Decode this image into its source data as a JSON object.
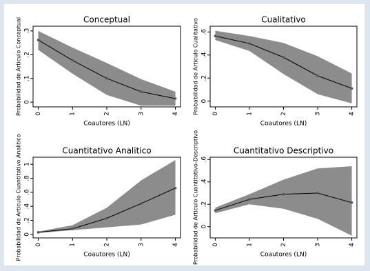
{
  "chart_data": [
    {
      "type": "line",
      "title": "Conceptual",
      "xlabel": "Coautores (LN)",
      "ylabel": "Probabilidad de Articulo Conceptual",
      "x": [
        0,
        1,
        2,
        3,
        4
      ],
      "xlim": [
        -0.15,
        4.15
      ],
      "xticks": [
        0,
        1,
        2,
        3,
        4
      ],
      "ylim": [
        -0.02,
        0.32
      ],
      "yticks": [
        0,
        {
          "value": 0.1,
          "label": ".1"
        },
        {
          "value": 0.2,
          "label": ".2"
        },
        {
          "value": 0.3,
          "label": ".3"
        }
      ],
      "color": "#000000",
      "band_color": "#8c8c8c",
      "values": [
        0.262,
        0.176,
        0.1,
        0.044,
        0.015
      ],
      "ci_upper": [
        0.3,
        0.23,
        0.165,
        0.097,
        0.044
      ],
      "ci_lower": [
        0.22,
        0.12,
        0.03,
        -0.015,
        -0.015
      ]
    },
    {
      "type": "line",
      "title": "Cualitativo",
      "xlabel": "Coautores (LN)",
      "ylabel": "Probabilidad de Articulo Cualitativo",
      "x": [
        0,
        1,
        2,
        3,
        4
      ],
      "xlim": [
        -0.15,
        4.15
      ],
      "xticks": [
        0,
        1,
        2,
        3,
        4
      ],
      "ylim": [
        -0.05,
        0.65
      ],
      "yticks": [
        0,
        {
          "value": 0.2,
          "label": ".2"
        },
        {
          "value": 0.4,
          "label": ".4"
        },
        {
          "value": 0.6,
          "label": ".6"
        }
      ],
      "color": "#000000",
      "band_color": "#8c8c8c",
      "values": [
        0.565,
        0.5,
        0.38,
        0.22,
        0.11
      ],
      "ci_upper": [
        0.61,
        0.565,
        0.505,
        0.39,
        0.24
      ],
      "ci_lower": [
        0.53,
        0.435,
        0.235,
        0.06,
        -0.02
      ]
    },
    {
      "type": "line",
      "title": "Cuantitativo Analitico",
      "xlabel": "Coautores (LN)",
      "ylabel": "Probabilidad de Articulo Cuantitativo Analitico",
      "x": [
        0,
        1,
        2,
        3,
        4
      ],
      "xlim": [
        -0.15,
        4.15
      ],
      "xticks": [
        0,
        1,
        2,
        3,
        4
      ],
      "ylim": [
        -0.05,
        1.1
      ],
      "yticks": [
        0,
        {
          "value": 0.2,
          "label": ".2"
        },
        {
          "value": 0.4,
          "label": ".4"
        },
        {
          "value": 0.6,
          "label": ".6"
        },
        {
          "value": 0.8,
          "label": ".8"
        },
        1
      ],
      "color": "#000000",
      "band_color": "#8c8c8c",
      "values": [
        0.03,
        0.08,
        0.23,
        0.44,
        0.66
      ],
      "ci_upper": [
        0.04,
        0.13,
        0.38,
        0.77,
        1.06
      ],
      "ci_lower": [
        0.02,
        0.06,
        0.1,
        0.14,
        0.28
      ]
    },
    {
      "type": "line",
      "title": "Cuantitativo Descriptivo",
      "xlabel": "Coautores (LN)",
      "ylabel": "Probabilidad de Articulo Cuantitativo-Descriptivo",
      "x": [
        0,
        1,
        2,
        3,
        4
      ],
      "xlim": [
        -0.15,
        4.15
      ],
      "xticks": [
        0,
        1,
        2,
        3,
        4
      ],
      "ylim": [
        -0.1,
        0.62
      ],
      "yticks": [
        0,
        {
          "value": 0.2,
          "label": ".2"
        },
        {
          "value": 0.4,
          "label": ".4"
        },
        {
          "value": 0.6,
          "label": ".6"
        }
      ],
      "color": "#000000",
      "band_color": "#8c8c8c",
      "values": [
        0.145,
        0.244,
        0.29,
        0.3,
        0.215
      ],
      "ci_upper": [
        0.17,
        0.29,
        0.42,
        0.52,
        0.54
      ],
      "ci_lower": [
        0.12,
        0.2,
        0.16,
        0.07,
        -0.08
      ]
    }
  ]
}
